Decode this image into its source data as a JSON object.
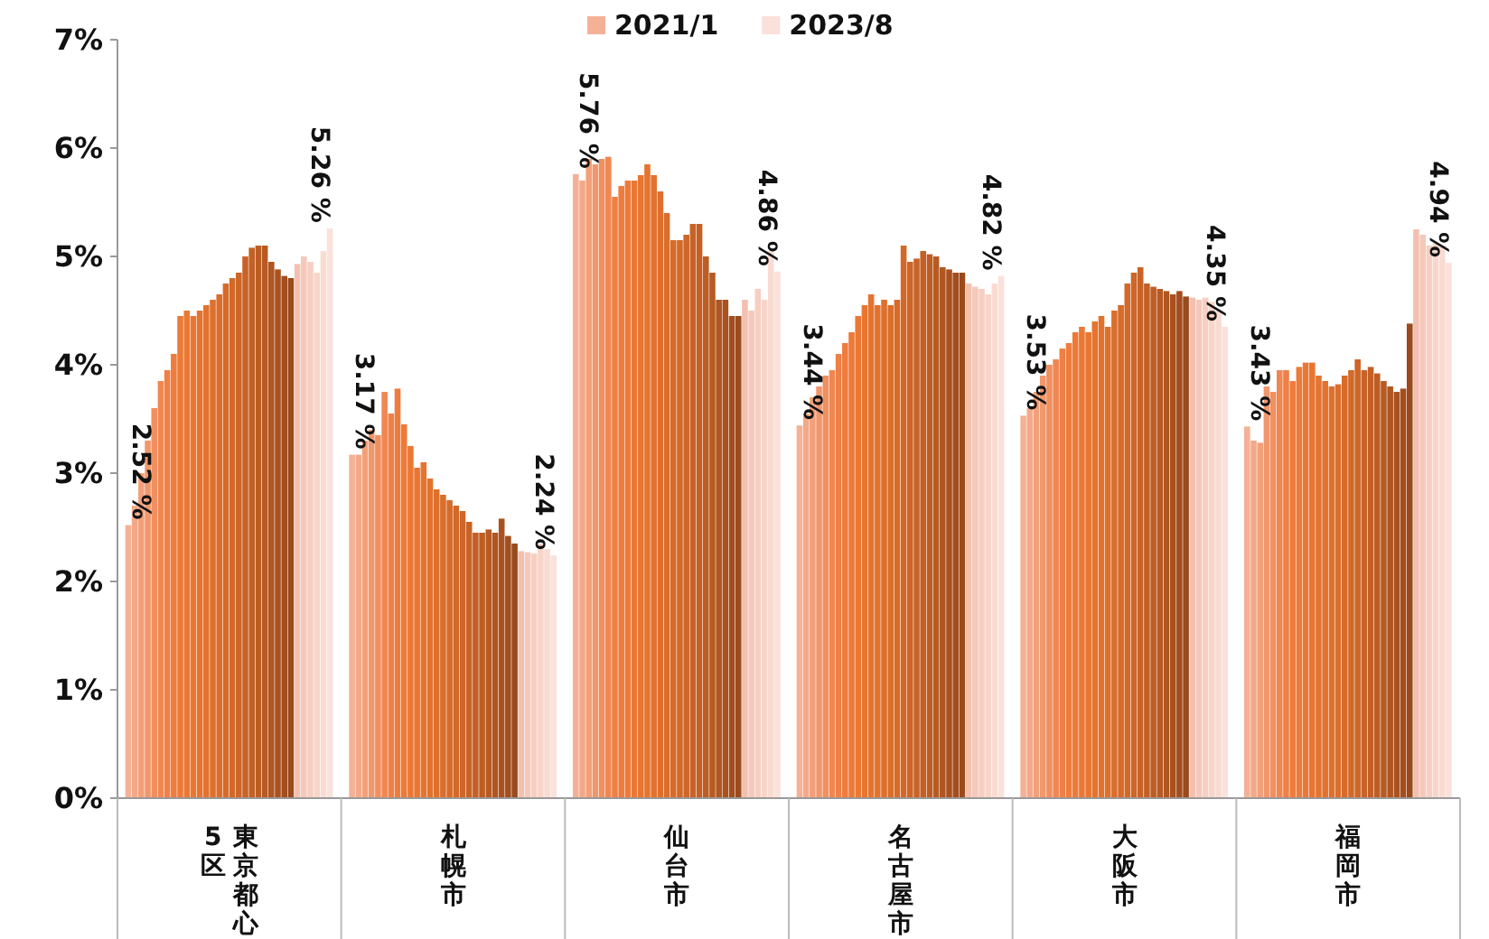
{
  "chart_data": {
    "type": "bar",
    "categories": [
      "東京都心5区",
      "札幌市",
      "仙台市",
      "名古屋市",
      "大阪市",
      "福岡市"
    ],
    "ylim": [
      0,
      7
    ],
    "yticks": [
      {
        "value": 0,
        "label": "0%"
      },
      {
        "value": 1,
        "label": "1%"
      },
      {
        "value": 2,
        "label": "2%"
      },
      {
        "value": 3,
        "label": "3%"
      },
      {
        "value": 4,
        "label": "4%"
      },
      {
        "value": 5,
        "label": "5%"
      },
      {
        "value": 6,
        "label": "6%"
      },
      {
        "value": 7,
        "label": "7%"
      }
    ],
    "grid": false,
    "legend": "top",
    "series": [
      {
        "name": "2021/1",
        "color": "#f4b196",
        "values": [
          2.52,
          3.17,
          5.76,
          3.44,
          3.53,
          3.43
        ],
        "value_labels": [
          "2.52 %",
          "3.17 %",
          "5.76 %",
          "3.44 %",
          "3.53 %",
          "3.43 %"
        ]
      },
      {
        "color": "#f3a987",
        "values": [
          2.7,
          3.17,
          5.7,
          3.55,
          3.6,
          3.3
        ]
      },
      {
        "color": "#f2a07a",
        "values": [
          3.0,
          3.3,
          5.9,
          3.7,
          3.75,
          3.28
        ]
      },
      {
        "color": "#f1976c",
        "values": [
          3.3,
          3.4,
          5.85,
          3.8,
          3.9,
          3.8
        ]
      },
      {
        "color": "#f18f5f",
        "values": [
          3.6,
          3.35,
          5.9,
          3.9,
          4.0,
          3.75
        ]
      },
      {
        "color": "#f08752",
        "values": [
          3.85,
          3.75,
          5.92,
          3.95,
          4.05,
          3.95
        ]
      },
      {
        "color": "#ef8046",
        "values": [
          3.95,
          3.55,
          5.55,
          4.1,
          4.15,
          3.95
        ]
      },
      {
        "color": "#ee7c3e",
        "values": [
          4.1,
          3.78,
          5.65,
          4.2,
          4.2,
          3.85
        ]
      },
      {
        "color": "#ec7a38",
        "values": [
          4.45,
          3.45,
          5.7,
          4.3,
          4.3,
          3.98
        ]
      },
      {
        "color": "#ea7834",
        "values": [
          4.5,
          3.25,
          5.7,
          4.45,
          4.35,
          4.02
        ]
      },
      {
        "color": "#e87632",
        "values": [
          4.45,
          3.05,
          5.75,
          4.55,
          4.3,
          4.02
        ]
      },
      {
        "color": "#e57430",
        "values": [
          4.5,
          3.1,
          5.85,
          4.65,
          4.4,
          3.9
        ]
      },
      {
        "color": "#e2722e",
        "values": [
          4.55,
          2.95,
          5.75,
          4.55,
          4.45,
          3.85
        ]
      },
      {
        "color": "#de702d",
        "values": [
          4.6,
          2.85,
          5.6,
          4.6,
          4.35,
          3.8
        ]
      },
      {
        "color": "#da6e2c",
        "values": [
          4.65,
          2.8,
          5.4,
          4.55,
          4.5,
          3.82
        ]
      },
      {
        "color": "#d66b2a",
        "values": [
          4.75,
          2.75,
          5.15,
          4.6,
          4.55,
          3.9
        ]
      },
      {
        "color": "#d26929",
        "values": [
          4.8,
          2.7,
          5.15,
          5.1,
          4.75,
          3.95
        ]
      },
      {
        "color": "#cd6628",
        "values": [
          4.85,
          2.65,
          5.2,
          4.95,
          4.85,
          4.05
        ]
      },
      {
        "color": "#c86327",
        "values": [
          5.0,
          2.55,
          5.3,
          4.98,
          4.9,
          3.95
        ]
      },
      {
        "color": "#c36026",
        "values": [
          5.08,
          2.45,
          5.3,
          5.05,
          4.75,
          3.98
        ]
      },
      {
        "color": "#bd5d24",
        "values": [
          5.1,
          2.45,
          5.0,
          5.02,
          4.72,
          3.92
        ]
      },
      {
        "color": "#b75a23",
        "values": [
          5.1,
          2.48,
          4.85,
          5.0,
          4.7,
          3.85
        ]
      },
      {
        "color": "#b05621",
        "values": [
          4.95,
          2.45,
          4.6,
          4.9,
          4.68,
          3.8
        ]
      },
      {
        "color": "#a95220",
        "values": [
          4.88,
          2.58,
          4.6,
          4.88,
          4.65,
          3.75
        ]
      },
      {
        "color": "#a24e1e",
        "values": [
          4.82,
          2.42,
          4.45,
          4.85,
          4.68,
          3.78
        ]
      },
      {
        "color": "#9a4a1c",
        "values": [
          4.8,
          2.35,
          4.45,
          4.85,
          4.63,
          4.38
        ]
      },
      {
        "color": "#f3c0b0",
        "values": [
          4.93,
          2.28,
          4.6,
          4.75,
          4.62,
          5.25
        ]
      },
      {
        "color": "#f5c8ba",
        "values": [
          5.0,
          2.27,
          4.5,
          4.72,
          4.6,
          5.2
        ]
      },
      {
        "color": "#f6cfc2",
        "values": [
          4.95,
          2.26,
          4.7,
          4.7,
          4.62,
          5.1
        ]
      },
      {
        "color": "#f8d5ca",
        "values": [
          4.85,
          2.35,
          4.6,
          4.65,
          4.58,
          5.12
        ]
      },
      {
        "color": "#f9dbd2",
        "values": [
          5.05,
          2.3,
          5.05,
          4.75,
          4.5,
          5.1
        ]
      },
      {
        "name": "2023/8",
        "color": "#fae1d9",
        "values": [
          5.26,
          2.24,
          4.86,
          4.82,
          4.35,
          4.94
        ],
        "value_labels": [
          "5.26 %",
          "2.24 %",
          "4.86 %",
          "4.82 %",
          "4.35 %",
          "4.94 %"
        ]
      }
    ]
  }
}
